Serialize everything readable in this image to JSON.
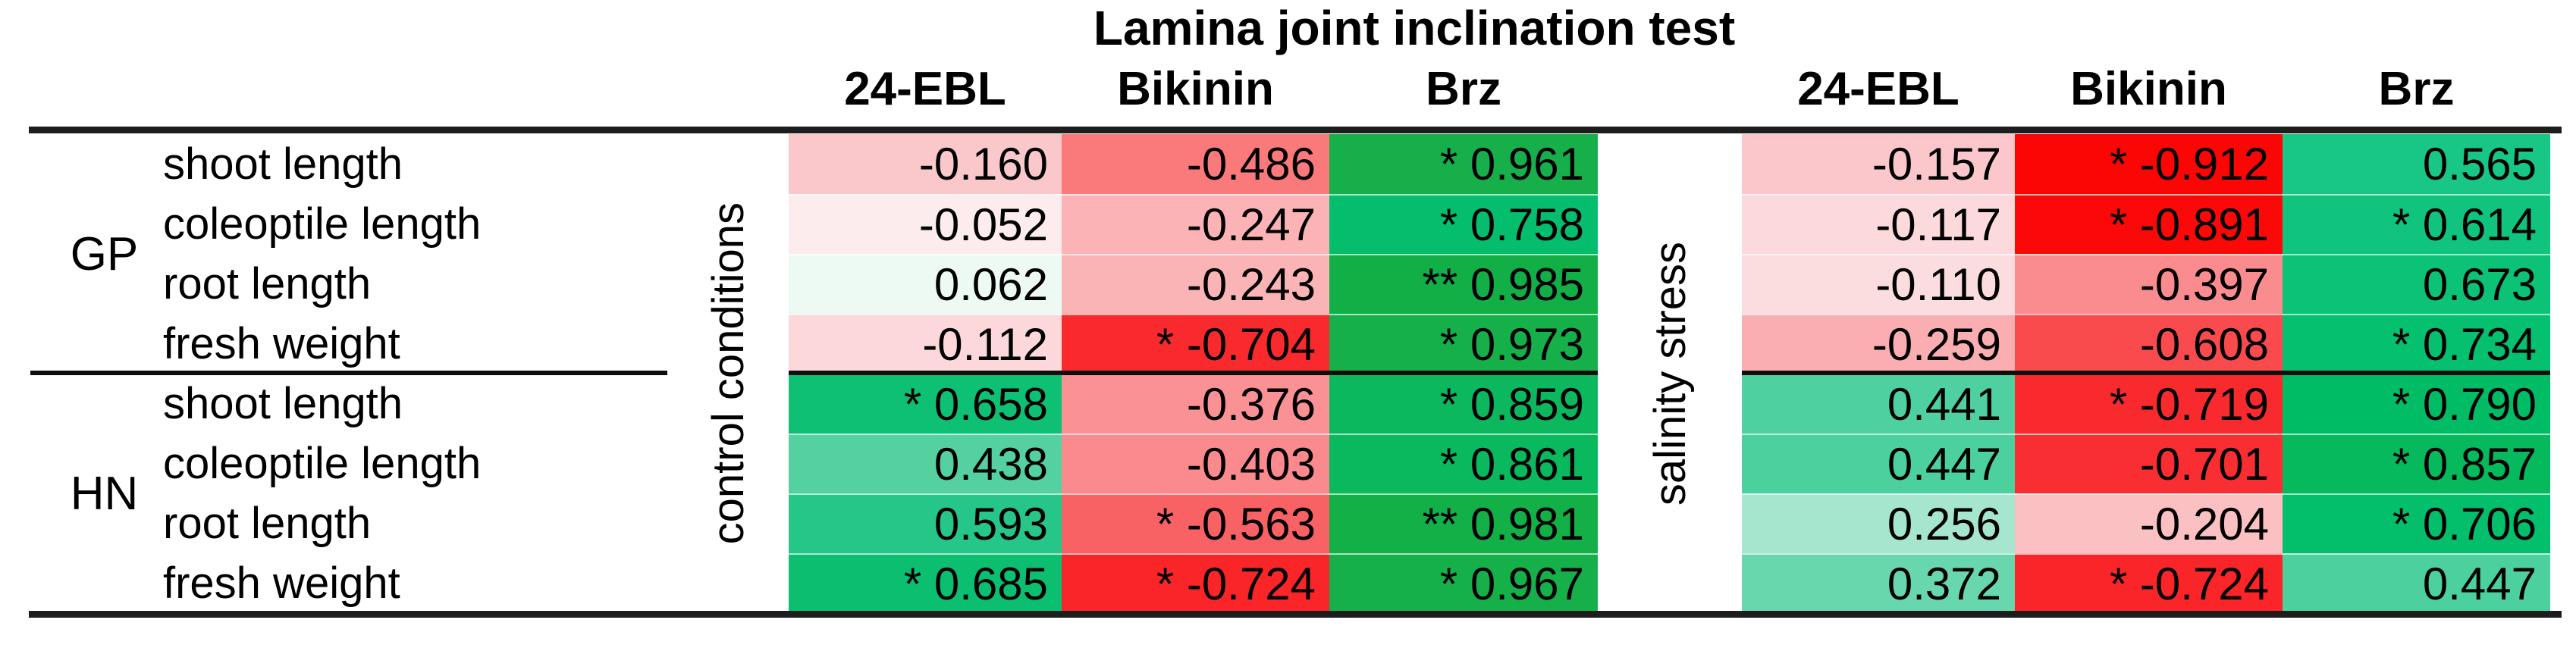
{
  "table": {
    "title": "Lamina joint inclination test",
    "treatment_columns": [
      "24-EBL",
      "Bikinin",
      "Brz"
    ],
    "condition_left": "control conditions",
    "condition_right": "salinity stress",
    "groups": [
      {
        "name": "GP",
        "rows": [
          {
            "trait": "shoot length",
            "control": [
              {
                "text": "-0.160",
                "sig": "",
                "color": "#FAC7CA"
              },
              {
                "text": "-0.486",
                "sig": "",
                "color": "#FA797B"
              },
              {
                "text": "0.961",
                "sig": "*",
                "color": "#17AF4A"
              }
            ],
            "salinity": [
              {
                "text": "-0.157",
                "sig": "",
                "color": "#FBC7CA"
              },
              {
                "text": "-0.912",
                "sig": "*",
                "color": "#FB0505"
              },
              {
                "text": "0.565",
                "sig": "",
                "color": "#18C785"
              }
            ]
          },
          {
            "trait": "coleoptile length",
            "control": [
              {
                "text": "-0.052",
                "sig": "",
                "color": "#FDECED"
              },
              {
                "text": "-0.247",
                "sig": "",
                "color": "#FBB3B5"
              },
              {
                "text": "0.758",
                "sig": "*",
                "color": "#04BE6D"
              }
            ],
            "salinity": [
              {
                "text": "-0.117",
                "sig": "",
                "color": "#FCDADC"
              },
              {
                "text": "-0.891",
                "sig": "*",
                "color": "#FB0909"
              },
              {
                "text": "0.614",
                "sig": "*",
                "color": "#10C47D"
              }
            ]
          },
          {
            "trait": "root length",
            "control": [
              {
                "text": "0.062",
                "sig": "",
                "color": "#EDFAF4"
              },
              {
                "text": "-0.243",
                "sig": "",
                "color": "#FBB4B6"
              },
              {
                "text": "0.985",
                "sig": "**",
                "color": "#12AE46"
              }
            ],
            "salinity": [
              {
                "text": "-0.110",
                "sig": "",
                "color": "#FCDDDF"
              },
              {
                "text": "-0.397",
                "sig": "",
                "color": "#FA8C8F"
              },
              {
                "text": "0.673",
                "sig": "",
                "color": "#0BC276"
              }
            ]
          },
          {
            "trait": "fresh weight",
            "control": [
              {
                "text": "-0.112",
                "sig": "",
                "color": "#FCD8DA"
              },
              {
                "text": "-0.704",
                "sig": "*",
                "color": "#F92A2D"
              },
              {
                "text": "0.973",
                "sig": "*",
                "color": "#15B049"
              }
            ],
            "salinity": [
              {
                "text": "-0.259",
                "sig": "",
                "color": "#FBAEB1"
              },
              {
                "text": "-0.608",
                "sig": "",
                "color": "#F94B4E"
              },
              {
                "text": "0.734",
                "sig": "*",
                "color": "#05C06F"
              }
            ]
          }
        ]
      },
      {
        "name": "HN",
        "rows": [
          {
            "trait": "shoot length",
            "control": [
              {
                "text": "0.658",
                "sig": "*",
                "color": "#0EC073"
              },
              {
                "text": "-0.376",
                "sig": "",
                "color": "#FA9194"
              },
              {
                "text": "0.859",
                "sig": "*",
                "color": "#0BB85D"
              }
            ],
            "salinity": [
              {
                "text": "0.441",
                "sig": "",
                "color": "#4FD0A0"
              },
              {
                "text": "-0.719",
                "sig": "*",
                "color": "#F92A2D"
              },
              {
                "text": "0.790",
                "sig": "*",
                "color": "#00BC64"
              }
            ]
          },
          {
            "trait": "coleoptile length",
            "control": [
              {
                "text": "0.438",
                "sig": "",
                "color": "#55D1A1"
              },
              {
                "text": "-0.403",
                "sig": "",
                "color": "#FA8A8D"
              },
              {
                "text": "0.861",
                "sig": "*",
                "color": "#0AB85E"
              }
            ],
            "salinity": [
              {
                "text": "0.447",
                "sig": "",
                "color": "#4CD09E"
              },
              {
                "text": "-0.701",
                "sig": "",
                "color": "#F92E32"
              },
              {
                "text": "0.857",
                "sig": "*",
                "color": "#06B95C"
              }
            ]
          },
          {
            "trait": "root length",
            "control": [
              {
                "text": "0.593",
                "sig": "",
                "color": "#25C687"
              },
              {
                "text": "-0.563",
                "sig": "*",
                "color": "#F96265"
              },
              {
                "text": "0.981",
                "sig": "**",
                "color": "#13AF47"
              }
            ],
            "salinity": [
              {
                "text": "0.256",
                "sig": "",
                "color": "#A6E5CE"
              },
              {
                "text": "-0.204",
                "sig": "",
                "color": "#FBC0C2"
              },
              {
                "text": "0.706",
                "sig": "*",
                "color": "#03BF6B"
              }
            ]
          },
          {
            "trait": "fresh weight",
            "control": [
              {
                "text": "0.685",
                "sig": "*",
                "color": "#0CBF70"
              },
              {
                "text": "-0.724",
                "sig": "*",
                "color": "#F92529"
              },
              {
                "text": "0.967",
                "sig": "*",
                "color": "#16B04B"
              }
            ],
            "salinity": [
              {
                "text": "0.372",
                "sig": "",
                "color": "#69D7AE"
              },
              {
                "text": "-0.724",
                "sig": "*",
                "color": "#F92528"
              },
              {
                "text": "0.447",
                "sig": "",
                "color": "#4CD09E"
              }
            ]
          }
        ]
      }
    ]
  },
  "chart_data": {
    "type": "heatmap",
    "title": "Lamina joint inclination test",
    "columns": [
      "control 24-EBL",
      "control Bikinin",
      "control Brz",
      "salinity 24-EBL",
      "salinity Bikinin",
      "salinity Brz"
    ],
    "rows": [
      "GP shoot length",
      "GP coleoptile length",
      "GP root length",
      "GP fresh weight",
      "HN shoot length",
      "HN coleoptile length",
      "HN root length",
      "HN fresh weight"
    ],
    "values": [
      [
        -0.16,
        -0.486,
        0.961,
        -0.157,
        -0.912,
        0.565
      ],
      [
        -0.052,
        -0.247,
        0.758,
        -0.117,
        -0.891,
        0.614
      ],
      [
        0.062,
        -0.243,
        0.985,
        -0.11,
        -0.397,
        0.673
      ],
      [
        -0.112,
        -0.704,
        0.973,
        -0.259,
        -0.608,
        0.734
      ],
      [
        0.658,
        -0.376,
        0.859,
        0.441,
        -0.719,
        0.79
      ],
      [
        0.438,
        -0.403,
        0.861,
        0.447,
        -0.701,
        0.857
      ],
      [
        0.593,
        -0.563,
        0.981,
        0.256,
        -0.204,
        0.706
      ],
      [
        0.685,
        -0.724,
        0.967,
        0.372,
        -0.724,
        0.447
      ]
    ],
    "significance": [
      [
        "",
        "",
        "*",
        "",
        "*",
        ""
      ],
      [
        "",
        "",
        "*",
        "",
        "*",
        "*"
      ],
      [
        "",
        "",
        "**",
        "",
        "",
        ""
      ],
      [
        "",
        "*",
        "*",
        "",
        "",
        "*"
      ],
      [
        "*",
        "",
        "*",
        "",
        "*",
        "*"
      ],
      [
        "",
        "",
        "*",
        "",
        "",
        "*"
      ],
      [
        "",
        "*",
        "**",
        "",
        "",
        "*"
      ],
      [
        "*",
        "*",
        "*",
        "",
        "*",
        ""
      ]
    ],
    "legend_position": "none",
    "colorscale": {
      "negative": "#FB0505",
      "zero": "#FFFFFF",
      "positive": "#12AE46",
      "range": [
        -1,
        1
      ]
    }
  }
}
